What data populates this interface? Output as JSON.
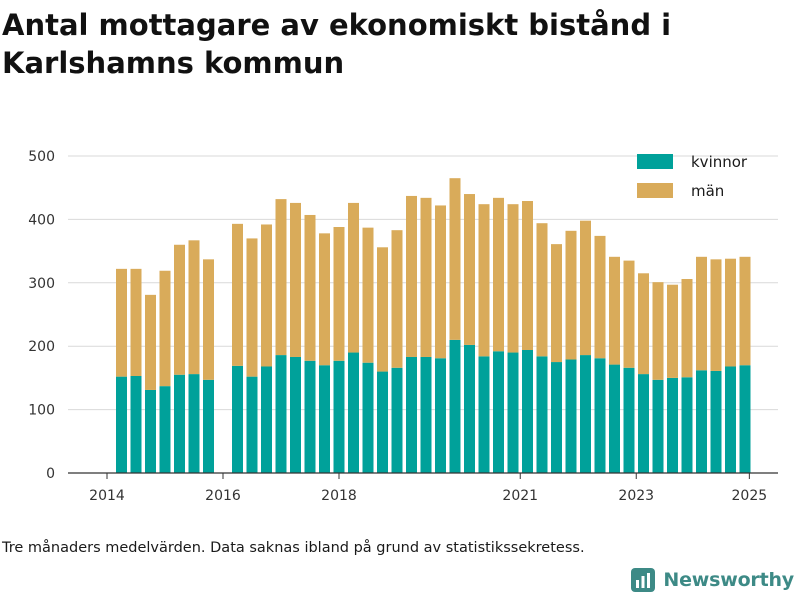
{
  "title": "Antal mottagare av ekonomiskt bistånd i Karlshamns kommun",
  "footnote": "Tre månaders medelvärden. Data saknas ibland på grund av statistikssekretess.",
  "brand": {
    "name": "Newsworthy",
    "icon": "newsworthy-logo-icon",
    "color": "#3d8a86"
  },
  "chart_data": {
    "type": "bar",
    "stacked": true,
    "x_ticks": [
      "2014",
      "2016",
      "2018",
      "2021",
      "2023",
      "2025"
    ],
    "y_ticks": [
      0,
      100,
      200,
      300,
      400,
      500
    ],
    "ylim": [
      0,
      500
    ],
    "grid": true,
    "legend_position": "top-right",
    "series": [
      {
        "name": "kvinnor",
        "color": "#00a19a",
        "values": [
          152,
          153,
          131,
          137,
          155,
          156,
          147,
          null,
          169,
          152,
          168,
          186,
          183,
          177,
          170,
          177,
          190,
          174,
          160,
          166,
          183,
          183,
          181,
          210,
          202,
          184,
          192,
          190,
          194,
          184,
          175,
          179,
          186,
          181,
          171,
          166,
          156,
          147,
          150,
          151,
          162,
          161,
          168,
          170
        ]
      },
      {
        "name": "män",
        "color": "#d9ab5a",
        "values": [
          170,
          169,
          150,
          182,
          205,
          211,
          190,
          null,
          224,
          218,
          224,
          246,
          243,
          230,
          208,
          211,
          236,
          213,
          196,
          217,
          254,
          251,
          241,
          255,
          238,
          240,
          242,
          234,
          235,
          210,
          186,
          203,
          212,
          193,
          170,
          169,
          159,
          154,
          147,
          155,
          179,
          176,
          170,
          171
        ]
      }
    ]
  }
}
